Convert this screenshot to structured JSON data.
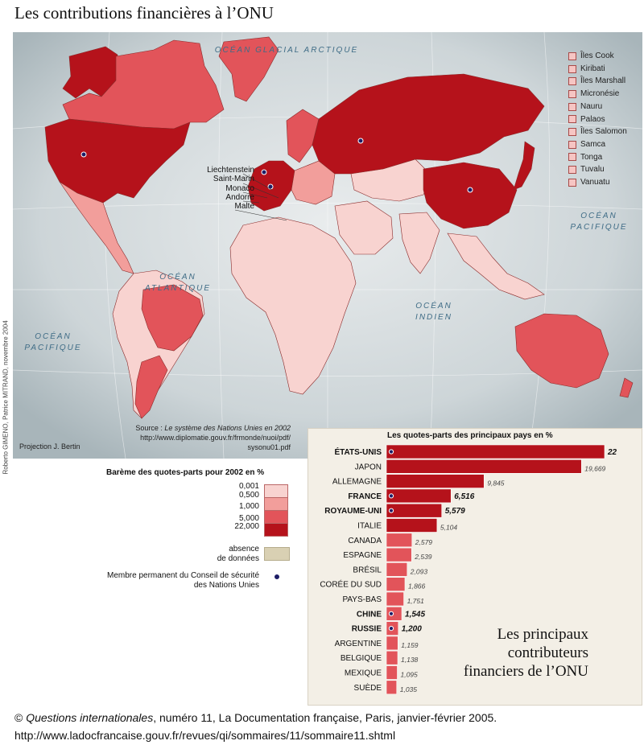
{
  "title": "Les contributions financières à l’ONU",
  "oceans": {
    "arctic": "OCÉAN GLACIAL ARCTIQUE",
    "pacific_east": "OCÉAN PACIFIQUE",
    "atlantic": "OCÉAN ATLANTIQUE",
    "indian": "OCÉAN INDIEN",
    "pacific_west": "OCÉAN PACIFIQUE"
  },
  "small_states": [
    "Îles Cook",
    "Kiribati",
    "Îles Marshall",
    "Micronésie",
    "Nauru",
    "Palaos",
    "Îles Salomon",
    "Samca",
    "Tonga",
    "Tuvalu",
    "Vanuatu"
  ],
  "europe_labels": [
    "Liechtenstein",
    "Saint-Marin",
    "Monaco",
    "Andorre",
    "Malte"
  ],
  "source": {
    "prefix": "Source : ",
    "title": "Le système des Nations Unies en 2002",
    "url1": "http://www.diplomatie.gouv.fr/frmonde/nuoi/pdf/",
    "url2": "sysonu01.pdf"
  },
  "projection": "Projection J. Bertin",
  "credit": "Roberto GIMENO, Patrice MITRAND, novembre 2004",
  "legend": {
    "title": "Barème des quotes-parts pour 2002 en %",
    "breaks": [
      "0,001",
      "0,500",
      "1,000",
      "5,000",
      "22,000"
    ],
    "colors": [
      "#f8d3d0",
      "#f29e9b",
      "#e2545a",
      "#b5121b"
    ],
    "nodata_line1": "absence",
    "nodata_line2": "de données",
    "nodata_color": "#d9d0b3",
    "member_line1": "Membre permanent du Conseil de sécurité",
    "member_line2": "des Nations Unies"
  },
  "panel": {
    "note_line1": "Les principaux",
    "note_line2": "contributeurs",
    "note_line3": "financiers de l’ONU"
  },
  "chart_data": {
    "type": "bar",
    "title": "Les quotes-parts des principaux pays en %",
    "categories": [
      "ÉTATS-UNIS",
      "JAPON",
      "ALLEMAGNE",
      "FRANCE",
      "ROYAUME-UNI",
      "ITALIE",
      "CANADA",
      "ESPAGNE",
      "BRÉSIL",
      "CORÉE DU SUD",
      "PAYS-BAS",
      "CHINE",
      "RUSSIE",
      "ARGENTINE",
      "BELGIQUE",
      "MEXIQUE",
      "SUÈDE"
    ],
    "values": [
      22,
      19.669,
      9.845,
      6.516,
      5.579,
      5.104,
      2.579,
      2.539,
      2.093,
      1.866,
      1.751,
      1.545,
      1.2,
      1.159,
      1.138,
      1.095,
      1.035
    ],
    "value_labels": [
      "22",
      "19,669",
      "9,845",
      "6,516",
      "5,579",
      "5,104",
      "2,579",
      "2,539",
      "2,093",
      "1,866",
      "1,751",
      "1,545",
      "1,200",
      "1,159",
      "1,138",
      "1,095",
      "1,035"
    ],
    "permanent_members": [
      "ÉTATS-UNIS",
      "FRANCE",
      "ROYAUME-UNI",
      "CHINE",
      "RUSSIE"
    ],
    "xlim": [
      0,
      22
    ]
  },
  "footer": {
    "copyright": "© ",
    "publication": "Questions internationales",
    "rest": ", numéro 11, La Documentation française, Paris, janvier-février 2005.",
    "url": "http://www.ladocfrancaise.gouv.fr/revues/qi/sommaires/11/sommaire11.shtml"
  }
}
